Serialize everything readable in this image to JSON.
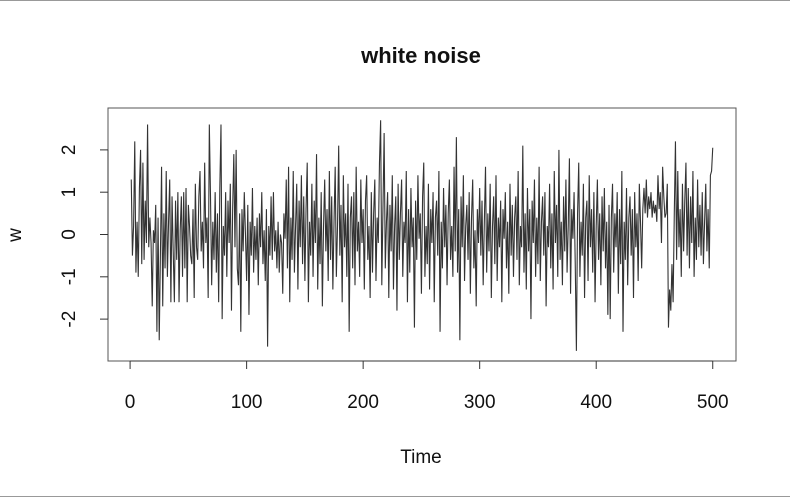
{
  "chart_data": {
    "type": "line",
    "title": "white noise",
    "x_label": "Time",
    "y_label": "w",
    "color": "#333333",
    "xlim": [
      -18.96,
      519.96
    ],
    "ylim": [
      -2.99,
      2.99
    ],
    "xticks": [
      0,
      100,
      200,
      300,
      400,
      500
    ],
    "yticks": [
      -2,
      -1,
      0,
      1,
      2
    ],
    "x": [
      1,
      2,
      3,
      4,
      5,
      6,
      7,
      8,
      9,
      10,
      11,
      12,
      13,
      14,
      15,
      16,
      17,
      18,
      19,
      20,
      21,
      22,
      23,
      24,
      25,
      26,
      27,
      28,
      29,
      30,
      31,
      32,
      33,
      34,
      35,
      36,
      37,
      38,
      39,
      40,
      41,
      42,
      43,
      44,
      45,
      46,
      47,
      48,
      49,
      50,
      51,
      52,
      53,
      54,
      55,
      56,
      57,
      58,
      59,
      60,
      61,
      62,
      63,
      64,
      65,
      66,
      67,
      68,
      69,
      70,
      71,
      72,
      73,
      74,
      75,
      76,
      77,
      78,
      79,
      80,
      81,
      82,
      83,
      84,
      85,
      86,
      87,
      88,
      89,
      90,
      91,
      92,
      93,
      94,
      95,
      96,
      97,
      98,
      99,
      100,
      101,
      102,
      103,
      104,
      105,
      106,
      107,
      108,
      109,
      110,
      111,
      112,
      113,
      114,
      115,
      116,
      117,
      118,
      119,
      120,
      121,
      122,
      123,
      124,
      125,
      126,
      127,
      128,
      129,
      130,
      131,
      132,
      133,
      134,
      135,
      136,
      137,
      138,
      139,
      140,
      141,
      142,
      143,
      144,
      145,
      146,
      147,
      148,
      149,
      150,
      151,
      152,
      153,
      154,
      155,
      156,
      157,
      158,
      159,
      160,
      161,
      162,
      163,
      164,
      165,
      166,
      167,
      168,
      169,
      170,
      171,
      172,
      173,
      174,
      175,
      176,
      177,
      178,
      179,
      180,
      181,
      182,
      183,
      184,
      185,
      186,
      187,
      188,
      189,
      190,
      191,
      192,
      193,
      194,
      195,
      196,
      197,
      198,
      199,
      200,
      201,
      202,
      203,
      204,
      205,
      206,
      207,
      208,
      209,
      210,
      211,
      212,
      213,
      214,
      215,
      216,
      217,
      218,
      219,
      220,
      221,
      222,
      223,
      224,
      225,
      226,
      227,
      228,
      229,
      230,
      231,
      232,
      233,
      234,
      235,
      236,
      237,
      238,
      239,
      240,
      241,
      242,
      243,
      244,
      245,
      246,
      247,
      248,
      249,
      250,
      251,
      252,
      253,
      254,
      255,
      256,
      257,
      258,
      259,
      260,
      261,
      262,
      263,
      264,
      265,
      266,
      267,
      268,
      269,
      270,
      271,
      272,
      273,
      274,
      275,
      276,
      277,
      278,
      279,
      280,
      281,
      282,
      283,
      284,
      285,
      286,
      287,
      288,
      289,
      290,
      291,
      292,
      293,
      294,
      295,
      296,
      297,
      298,
      299,
      300,
      301,
      302,
      303,
      304,
      305,
      306,
      307,
      308,
      309,
      310,
      311,
      312,
      313,
      314,
      315,
      316,
      317,
      318,
      319,
      320,
      321,
      322,
      323,
      324,
      325,
      326,
      327,
      328,
      329,
      330,
      331,
      332,
      333,
      334,
      335,
      336,
      337,
      338,
      339,
      340,
      341,
      342,
      343,
      344,
      345,
      346,
      347,
      348,
      349,
      350,
      351,
      352,
      353,
      354,
      355,
      356,
      357,
      358,
      359,
      360,
      361,
      362,
      363,
      364,
      365,
      366,
      367,
      368,
      369,
      370,
      371,
      372,
      373,
      374,
      375,
      376,
      377,
      378,
      379,
      380,
      381,
      382,
      383,
      384,
      385,
      386,
      387,
      388,
      389,
      390,
      391,
      392,
      393,
      394,
      395,
      396,
      397,
      398,
      399,
      400,
      401,
      402,
      403,
      404,
      405,
      406,
      407,
      408,
      409,
      410,
      411,
      412,
      413,
      414,
      415,
      416,
      417,
      418,
      419,
      420,
      421,
      422,
      423,
      424,
      425,
      426,
      427,
      428,
      429,
      430,
      431,
      432,
      433,
      434,
      435,
      436,
      437,
      438,
      439,
      440,
      441,
      442,
      443,
      444,
      445,
      446,
      447,
      448,
      449,
      450,
      451,
      452,
      453,
      454,
      455,
      456,
      457,
      458,
      459,
      460,
      461,
      462,
      463,
      464,
      465,
      466,
      467,
      468,
      469,
      470,
      471,
      472,
      473,
      474,
      475,
      476,
      477,
      478,
      479,
      480,
      481,
      482,
      483,
      484,
      485,
      486,
      487,
      488,
      489,
      490,
      491,
      492,
      493,
      494,
      495,
      496,
      497,
      498,
      499,
      500
    ],
    "values": [
      1.3,
      -0.5,
      0.2,
      2.2,
      -0.9,
      0.3,
      -1.0,
      1.1,
      2.0,
      -0.7,
      1.7,
      -0.6,
      0.8,
      -0.2,
      2.6,
      -0.3,
      0.4,
      -0.2,
      -1.7,
      0.1,
      -0.2,
      0.7,
      -2.3,
      0.4,
      -2.5,
      -0.5,
      1.6,
      -1.7,
      0.5,
      -0.8,
      1.5,
      -1.0,
      0.3,
      1.3,
      -1.6,
      0.9,
      -0.4,
      -1.6,
      0.8,
      -0.6,
      1.0,
      -1.6,
      0.1,
      0.9,
      -1.0,
      1.0,
      -0.8,
      1.1,
      -1.6,
      0.7,
      0.2,
      -0.5,
      -0.7,
      0.6,
      -1.5,
      1.2,
      -0.3,
      -0.6,
      0.9,
      1.5,
      -0.4,
      0.3,
      -0.8,
      1.7,
      -0.2,
      0.4,
      -1.5,
      2.6,
      0.9,
      -1.2,
      0.3,
      -0.6,
      1.0,
      -0.9,
      0.5,
      -1.6,
      1.1,
      2.6,
      -2.0,
      0.2,
      -0.5,
      1.0,
      -1.0,
      0.8,
      -0.2,
      1.2,
      -1.8,
      0.6,
      1.9,
      -0.3,
      2.0,
      -0.8,
      -1.2,
      0.5,
      -2.3,
      0.6,
      -0.4,
      1.0,
      0.0,
      -1.1,
      0.7,
      -1.9,
      0.3,
      -0.5,
      1.1,
      -0.9,
      0.2,
      -0.6,
      0.4,
      -1.2,
      0.5,
      -0.3,
      1.0,
      -0.7,
      0.1,
      -1.1,
      0.6,
      -2.65,
      0.2,
      -0.5,
      0.9,
      -0.6,
      1.0,
      -0.4,
      0.1,
      -0.8,
      0.3,
      -0.9,
      0.0,
      -0.2,
      -1.4,
      0.5,
      -0.1,
      1.3,
      -0.8,
      1.6,
      -1.6,
      0.4,
      -0.6,
      1.5,
      -0.9,
      0.2,
      1.2,
      -1.3,
      0.8,
      -0.3,
      1.4,
      -0.7,
      0.9,
      -1.1,
      0.6,
      1.7,
      -1.6,
      0.3,
      -0.5,
      1.2,
      -1.0,
      0.8,
      -0.2,
      1.9,
      -1.3,
      0.4,
      -0.7,
      1.0,
      -1.7,
      0.2,
      1.3,
      -0.4,
      0.6,
      -1.1,
      1.5,
      -0.6,
      0.9,
      -1.3,
      0.3,
      1.6,
      -1.0,
      0.2,
      2.1,
      -0.5,
      0.7,
      -1.6,
      1.4,
      -0.3,
      0.5,
      -1.0,
      1.2,
      -2.3,
      0.4,
      0.9,
      -0.8,
      1.0,
      -1.2,
      1.6,
      -0.4,
      0.3,
      -1.0,
      1.3,
      -0.2,
      0.6,
      -1.3,
      0.8,
      1.4,
      -0.6,
      0.2,
      -1.5,
      1.0,
      -0.9,
      0.5,
      1.3,
      -1.1,
      0.4,
      -0.2,
      1.7,
      2.7,
      -1.2,
      0.6,
      2.4,
      -0.8,
      0.3,
      1.0,
      -1.5,
      0.7,
      -0.4,
      1.4,
      -1.3,
      0.2,
      0.9,
      -1.8,
      1.2,
      -0.6,
      0.5,
      1.3,
      -1.0,
      0.3,
      -0.2,
      1.5,
      -1.6,
      0.6,
      -0.9,
      1.1,
      -0.3,
      0.4,
      -2.2,
      0.8,
      -0.6,
      1.4,
      -0.1,
      0.5,
      -1.4,
      0.9,
      1.7,
      -1.0,
      0.2,
      -0.7,
      1.2,
      -1.3,
      0.6,
      -0.2,
      1.0,
      -1.6,
      0.4,
      0.8,
      -0.5,
      1.5,
      -2.3,
      0.3,
      -0.8,
      1.1,
      -0.3,
      0.7,
      -1.2,
      0.5,
      1.3,
      -0.6,
      0.2,
      -1.0,
      1.6,
      -0.4,
      2.3,
      -0.9,
      0.6,
      -2.5,
      0.9,
      -0.3,
      1.4,
      -1.1,
      0.2,
      0.7,
      -0.6,
      1.0,
      -1.4,
      0.4,
      1.3,
      -0.8,
      0.1,
      -1.7,
      0.6,
      -0.2,
      1.1,
      -0.5,
      0.8,
      -1.2,
      0.3,
      1.6,
      -0.9,
      0.5,
      -0.4,
      1.2,
      -1.5,
      0.2,
      0.9,
      -0.7,
      1.4,
      -1.1,
      0.4,
      -0.3,
      0.8,
      -1.6,
      0.6,
      -0.1,
      1.0,
      -0.8,
      0.3,
      -1.4,
      1.2,
      -0.5,
      0.7,
      -1.0,
      0.4,
      0.9,
      -0.6,
      1.5,
      -1.2,
      0.2,
      -0.3,
      2.1,
      -0.9,
      0.5,
      -1.3,
      1.1,
      -0.4,
      0.6,
      -2.0,
      0.8,
      -0.2,
      1.3,
      -1.0,
      0.4,
      -0.7,
      1.6,
      -1.1,
      0.3,
      0.9,
      -0.5,
      1.0,
      -1.7,
      0.2,
      -0.3,
      1.2,
      -0.8,
      0.5,
      -1.3,
      1.5,
      -0.2,
      0.7,
      -1.0,
      2.0,
      -0.6,
      0.3,
      -1.2,
      0.9,
      -0.4,
      1.3,
      -0.9,
      0.2,
      1.8,
      -1.4,
      0.6,
      -0.1,
      1.0,
      -0.7,
      -2.75,
      0.5,
      1.7,
      -1.0,
      0.3,
      -0.5,
      1.2,
      -1.5,
      0.4,
      0.8,
      -1.1,
      1.4,
      -0.3,
      0.6,
      -0.9,
      1.0,
      -1.6,
      0.2,
      1.3,
      -0.6,
      0.5,
      -1.2,
      0.9,
      -0.4,
      1.1,
      -0.8,
      0.3,
      -1.9,
      0.7,
      -2.0,
      0.4,
      1.2,
      -0.9,
      0.5,
      -0.3,
      1.0,
      -1.4,
      0.6,
      -0.7,
      1.5,
      -2.3,
      0.3,
      -0.6,
      1.1,
      -1.2,
      0.4,
      0.9,
      -0.5,
      0.6,
      -1.5,
      1.0,
      -0.3,
      0.5,
      -1.1,
      1.2,
      0.3,
      -0.8,
      0.6,
      1.1,
      0.5,
      1.3,
      0.4,
      0.9,
      0.6,
      1.0,
      0.4,
      0.8,
      0.5,
      0.7,
      0.3,
      1.4,
      0.6,
      1.0,
      -0.2,
      1.6,
      0.9,
      0.4,
      0.5,
      1.2,
      -2.2,
      -1.3,
      -1.8,
      -0.7,
      -1.6,
      0.5,
      2.2,
      -0.6,
      1.5,
      -0.3,
      0.6,
      -1.0,
      1.2,
      -0.4,
      0.8,
      1.7,
      -0.5,
      1.1,
      -0.8,
      0.9,
      -0.2,
      1.5,
      -1.0,
      0.4,
      -0.6,
      1.3,
      -0.3,
      0.7,
      -0.5,
      1.0,
      -0.7,
      0.3,
      1.2,
      -0.4,
      0.6,
      -0.8,
      1.4,
      1.5,
      2.05
    ]
  }
}
